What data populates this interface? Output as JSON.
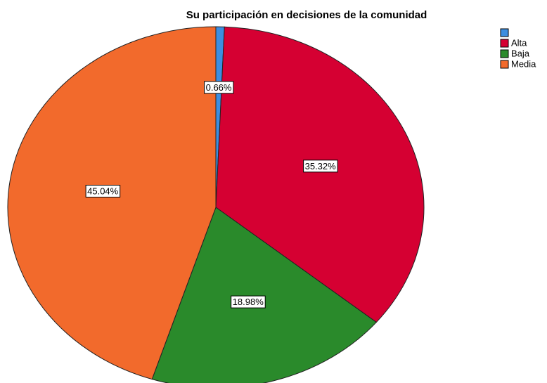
{
  "chart_data": {
    "type": "pie",
    "title": "Su participación en decisiones de la comunidad",
    "categories": [
      null,
      "Alta",
      "Baja",
      "Media"
    ],
    "values": [
      0.66,
      35.32,
      18.98,
      45.04
    ],
    "value_labels": [
      "0.66%",
      "35.32%",
      "18.98%",
      "45.04%"
    ],
    "colors": [
      "#3d8ee0",
      "#d50032",
      "#2a8a2b",
      "#f26a2c"
    ],
    "legend": "top-right"
  }
}
